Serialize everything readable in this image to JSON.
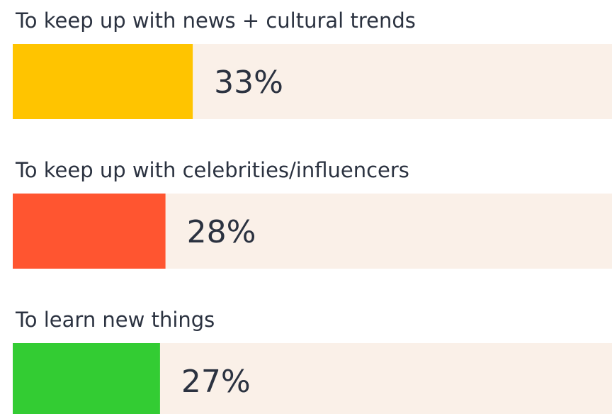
{
  "chart_data": {
    "type": "bar",
    "orientation": "horizontal",
    "categories": [
      "To keep up with news + cultural trends",
      "To keep up with celebrities/influencers",
      "To learn new things"
    ],
    "values": [
      33,
      28,
      27
    ],
    "value_labels": [
      "33%",
      "28%",
      "27%"
    ],
    "colors": [
      "#FFC400",
      "#FF5530",
      "#33CC33"
    ],
    "track_color": "#FAF0E8",
    "title": "",
    "xlabel": "",
    "ylabel": "",
    "legend": "none",
    "grid": false
  }
}
